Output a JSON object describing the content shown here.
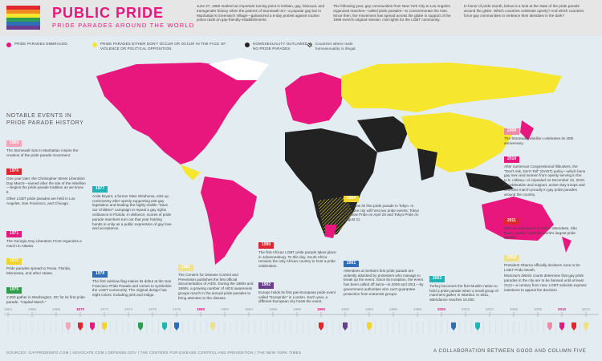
{
  "header": {
    "title": "PUBLIC PRIDE",
    "subtitle": "PRIDE PARADES AROUND THE WORLD",
    "paragraphs": [
      "June 27, 1969 marked an important turning point in lesbian, gay, bisexual, and transgender history when the patrons of Stonewall Inn—a popular gay bar in Manhattan's Greenwich Village—galvanized a 6-day protest against routine police raids on gay-friendly establishments.",
      "The following year, gay communities from New York City to Los Angeles organized marches—called pride parades—to commemorate the riots. Since then, the movement has spread across the globe in support of the 1969 event's original mission: civil rights for the LGBT community.",
      "In honor of pride month, below is a look at the state of the pride parade around the globe. Which countries celebrate openly? And which countries force gay communities to embrace their identities in the dark?"
    ]
  },
  "legend": [
    {
      "label": "PRIDE PARADES EMBRACED.",
      "color": "#e8177d"
    },
    {
      "label": "PRIDE PARADES EITHER DON'T OCCUR OR OCCUR IN THE FACE OF VIOLENCE OR POLITICAL OPPOSITION.",
      "color": "#f6e62e"
    },
    {
      "label": "HOMOSEXUALITY OUTLAWED. NO PRIDE PARADES.",
      "color": "#222222"
    },
    {
      "label": "Countries where male homosexuality is illegal.",
      "color": "#555555"
    }
  ],
  "timeline_heading": "NOTABLE EVENTS IN PRIDE PARADE HISTORY",
  "events": [
    {
      "year": "1969",
      "color": "#f4a6b8",
      "paragraphs": [
        "The Stonewall riots in Manhattan inspire the creation of the pride parade movement."
      ]
    },
    {
      "year": "1970",
      "color": "#e0262e",
      "paragraphs": [
        "One year later, the Christopher Street Liberation Day March—named after the site of the rebellion—begins the pride parade tradition as we know it.",
        "Other LGBT pride parades are held in Los Angeles, San Francisco, and Chicago."
      ]
    },
    {
      "year": "1971",
      "color": "#e8177d",
      "paragraphs": [
        "The Georgia Gay Liberation Front organizes a march in Atlanta."
      ]
    },
    {
      "year": "1972",
      "color": "#f2d22e",
      "paragraphs": [
        "Pride parades spread to Texas, Florida, Minnesota, and other states."
      ]
    },
    {
      "year": "1975",
      "color": "#2e9e4e",
      "paragraphs": [
        "2,000 gather in Washington, DC for its first pride parade, \"Capital March.\""
      ]
    },
    {
      "year": "1977",
      "color": "#1fb5b5",
      "paragraphs": [
        "Anita Bryant, a former Miss Oklahoma, stirs up controversy after openly supporting anti-gay legislation and leading the highly-visible \"Save our Children\" campaign to repeal a gay rights ordinance in Florida. In defiance, scores of pride parade marchers turn out that year holding hands in unity as a public expression of gay love and acceptance."
      ]
    },
    {
      "year": "1978",
      "color": "#2f6db5",
      "paragraphs": [
        "The first rainbow flag makes its debut at the San Francisco Pride Parade and comes to symbolize the LGBT community. The original design has eight colors, including pink and indigo."
      ]
    },
    {
      "year": "1981",
      "color": "#efe08c",
      "paragraphs": [
        "The Centers for Disease Control and Prevention publishes the first official documentation of AIDS. During the 1980s and 1990s, a growing number of AIDS awareness groups march in the annual pride parades to bring attention to the disease."
      ]
    },
    {
      "year": "1990",
      "color": "#e0262e",
      "paragraphs": [
        "The first African LGBT pride parade takes place in Johannesburg. To this day, South Africa remains the only African country to host a pride celebration."
      ]
    },
    {
      "year": "1992",
      "color": "#6a3d8f",
      "paragraphs": [
        "Europe holds its first pan-European pride event called \"Europride\" in London. Each year, a different European city hosts the event."
      ]
    },
    {
      "year": "1994",
      "color": "#f2d22e",
      "paragraphs": [
        "Japan has its first pride parade in Tokyo. In 2012, the city will host two pride events: Tokyo Rainbow Pride on April 29 and Tokyo Pride on August 11."
      ]
    },
    {
      "year": "2001",
      "color": "#2f6db5",
      "paragraphs": [
        "Attendees at Serbia's first pride parade are violently attacked by protesters who manage to break up the event. Since its inception, the event has been called off twice—in 2009 and 2011—by government authorities who can't guarantee protection from extremist groups."
      ]
    },
    {
      "year": "2003",
      "color": "#1fb5b5",
      "paragraphs": [
        "Turkey becomes the first Muslim nation to hold a pride parade when a small group of marchers gather in Istanbul. In 2011, attendance reaches 10,000."
      ]
    },
    {
      "year": "2009",
      "color": "#f08aa8",
      "paragraphs": [
        "The Stonewall rebellion celebrates its 40th anniversary."
      ]
    },
    {
      "year": "2010",
      "color": "#e8177d",
      "paragraphs": [
        "After numerous Congressional filibusters, the \"Don't Ask, Don't Tell\" (DADT) policy—which bans gay men and women from openly serving in the U.S. military—is repealed on December 22, 2010. In celebration and support, active duty troops and veterans march proudly in gay pride parades around the country."
      ]
    },
    {
      "year": "2011",
      "color": "#e0262e",
      "paragraphs": [
        "With an estimated 3.5 million attendees, São Paulo, Brazil, hosts the world's largest pride parade."
      ]
    },
    {
      "year": "2012",
      "color": "#efe08c",
      "paragraphs": [
        "President Obama officially declares June to be LGBT Pride Month.",
        "Moscow's district courts determine that gay pride parades in the city are to be banned until at least 2112—a century from now. LGBT activists express intentions to appeal the decision."
      ]
    }
  ],
  "timeline_axis": {
    "years": [
      1964,
      1966,
      1968,
      1970,
      1972,
      1974,
      1976,
      1978,
      1980,
      1982,
      1984,
      1986,
      1988,
      1990,
      1992,
      1994,
      1996,
      1998,
      2000,
      2002,
      2004,
      2006,
      2008,
      2010,
      2012
    ]
  },
  "footer": {
    "sources": "SOURCES: GAYPRIDEINFO.COM | ADVOCATE.COM | DEFENSE.GOV | THE CENTERS FOR DISEASE CONTROL AND PREVENTION | THE NEW YORK TIMES",
    "credit": "A COLLABORATION BETWEEN GOOD AND COLUMN FIVE"
  }
}
